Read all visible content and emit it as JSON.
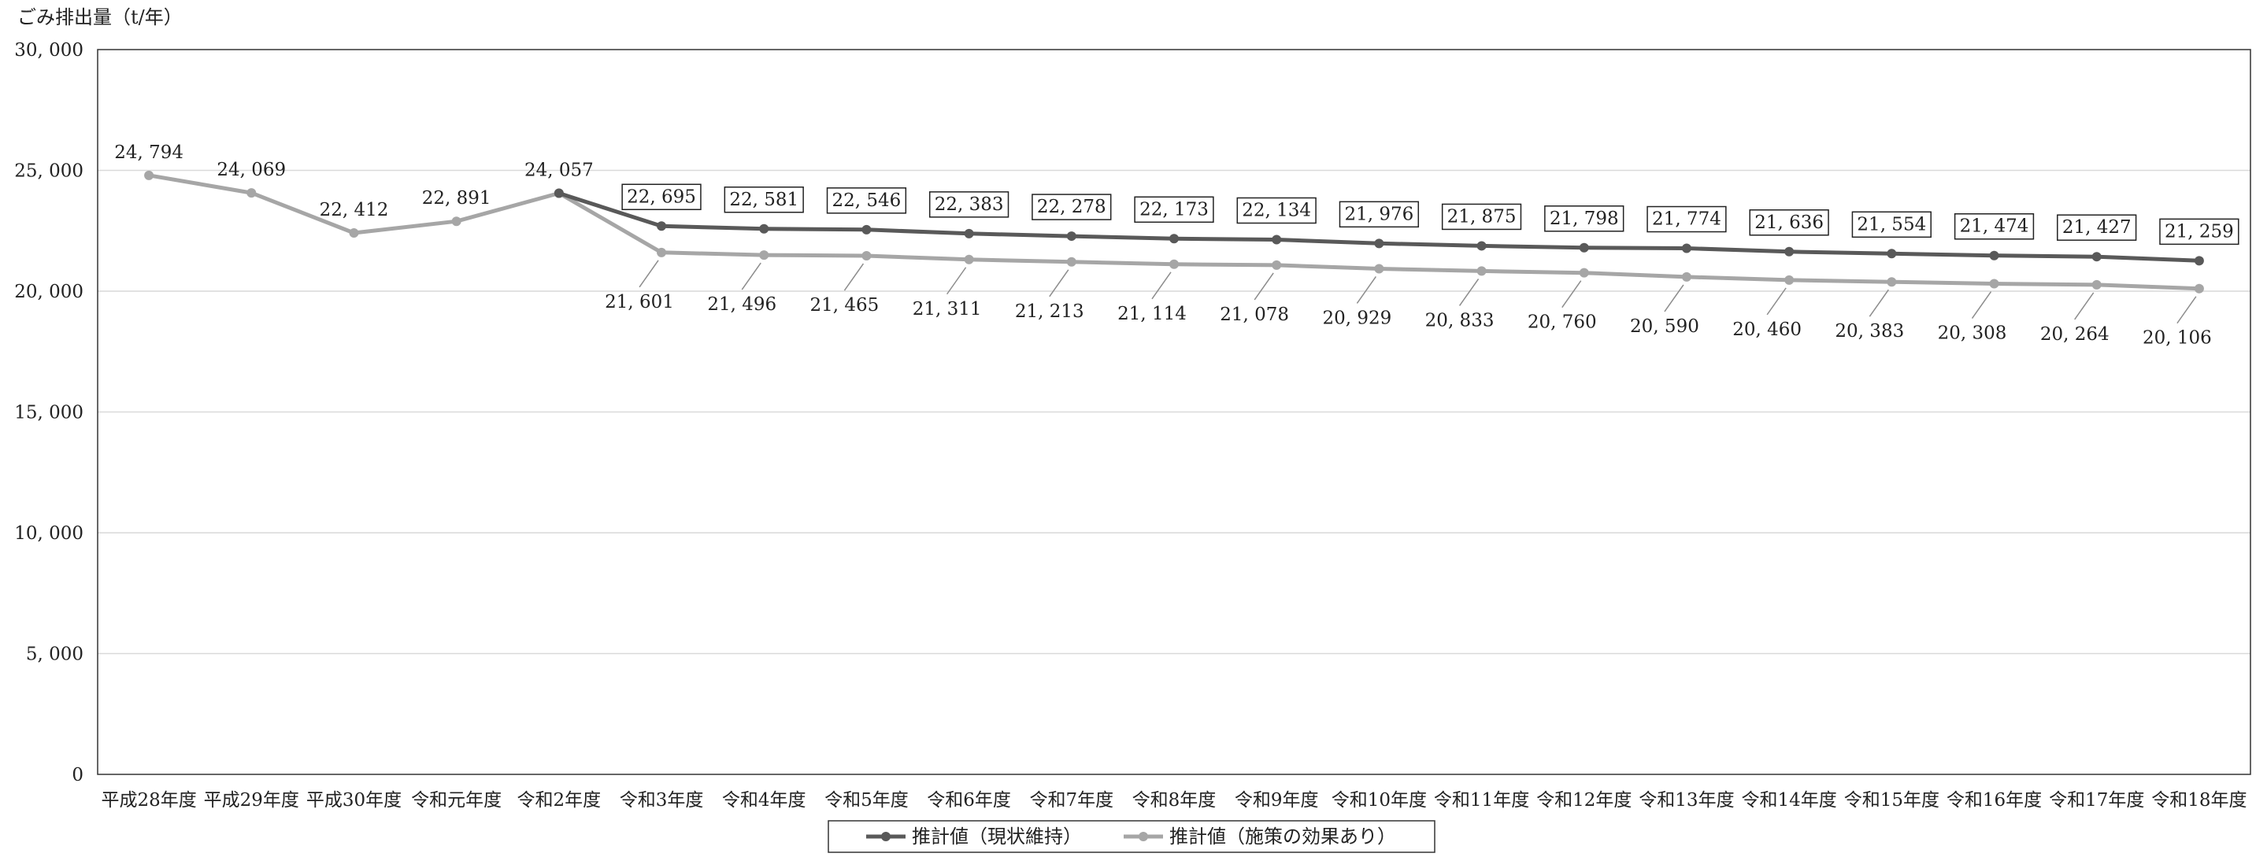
{
  "chart_data": {
    "type": "line",
    "ylabel": "ごみ排出量（t/年）",
    "ylim": [
      0,
      30000
    ],
    "yticks": [
      0,
      5000,
      10000,
      15000,
      20000,
      25000,
      30000
    ],
    "ytick_labels": [
      "0",
      "5, 000",
      "10, 000",
      "15, 000",
      "20, 000",
      "25, 000",
      "30, 000"
    ],
    "grid": true,
    "legend_position": "bottom",
    "categories": [
      "平成28年度",
      "平成29年度",
      "平成30年度",
      "令和元年度",
      "令和2年度",
      "令和3年度",
      "令和4年度",
      "令和5年度",
      "令和6年度",
      "令和7年度",
      "令和8年度",
      "令和9年度",
      "令和10年度",
      "令和11年度",
      "令和12年度",
      "令和13年度",
      "令和14年度",
      "令和15年度",
      "令和16年度",
      "令和17年度",
      "令和18年度"
    ],
    "series": [
      {
        "name": "推計値（現状維持）",
        "color": "#595959",
        "values": [
          null,
          null,
          null,
          null,
          24057,
          22695,
          22581,
          22546,
          22383,
          22278,
          22173,
          22134,
          21976,
          21875,
          21798,
          21774,
          21636,
          21554,
          21474,
          21427,
          21259
        ],
        "labels": [
          "",
          "",
          "",
          "",
          "",
          "22, 695",
          "22, 581",
          "22, 546",
          "22, 383",
          "22, 278",
          "22, 173",
          "22, 134",
          "21, 976",
          "21, 875",
          "21, 798",
          "21, 774",
          "21, 636",
          "21, 554",
          "21, 474",
          "21, 427",
          "21, 259"
        ]
      },
      {
        "name": "推計値（施策の効果あり）",
        "color": "#a6a6a6",
        "values": [
          24794,
          24069,
          22412,
          22891,
          24057,
          21601,
          21496,
          21465,
          21311,
          21213,
          21114,
          21078,
          20929,
          20833,
          20760,
          20590,
          20460,
          20383,
          20308,
          20264,
          20106
        ],
        "labels": [
          "24, 794",
          "24, 069",
          "22, 412",
          "22, 891",
          "24, 057",
          "21, 601",
          "21, 496",
          "21, 465",
          "21, 311",
          "21, 213",
          "21, 114",
          "21, 078",
          "20, 929",
          "20, 833",
          "20, 760",
          "20, 590",
          "20, 460",
          "20, 383",
          "20, 308",
          "20, 264",
          "20, 106"
        ]
      }
    ]
  }
}
